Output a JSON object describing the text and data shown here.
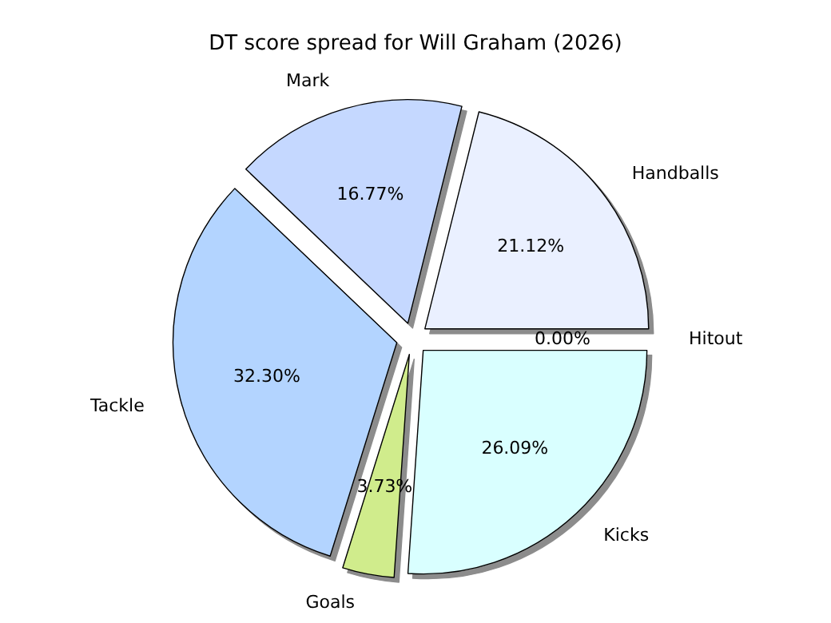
{
  "chart_data": {
    "type": "pie",
    "title": "DT score spread for Will Graham (2026)",
    "categories": [
      "Handballs",
      "Mark",
      "Tackle",
      "Goals",
      "Kicks",
      "Hitout"
    ],
    "values": [
      21.12,
      16.77,
      32.3,
      3.73,
      26.09,
      0.0
    ],
    "colors": [
      "#eaf0ff",
      "#c5d8ff",
      "#b3d4ff",
      "#d0ec8c",
      "#d9ffff",
      "#c9e0ff"
    ],
    "value_labels": [
      "21.12%",
      "16.77%",
      "32.30%",
      "3.73%",
      "26.09%",
      "0.00%"
    ],
    "legend": false
  }
}
